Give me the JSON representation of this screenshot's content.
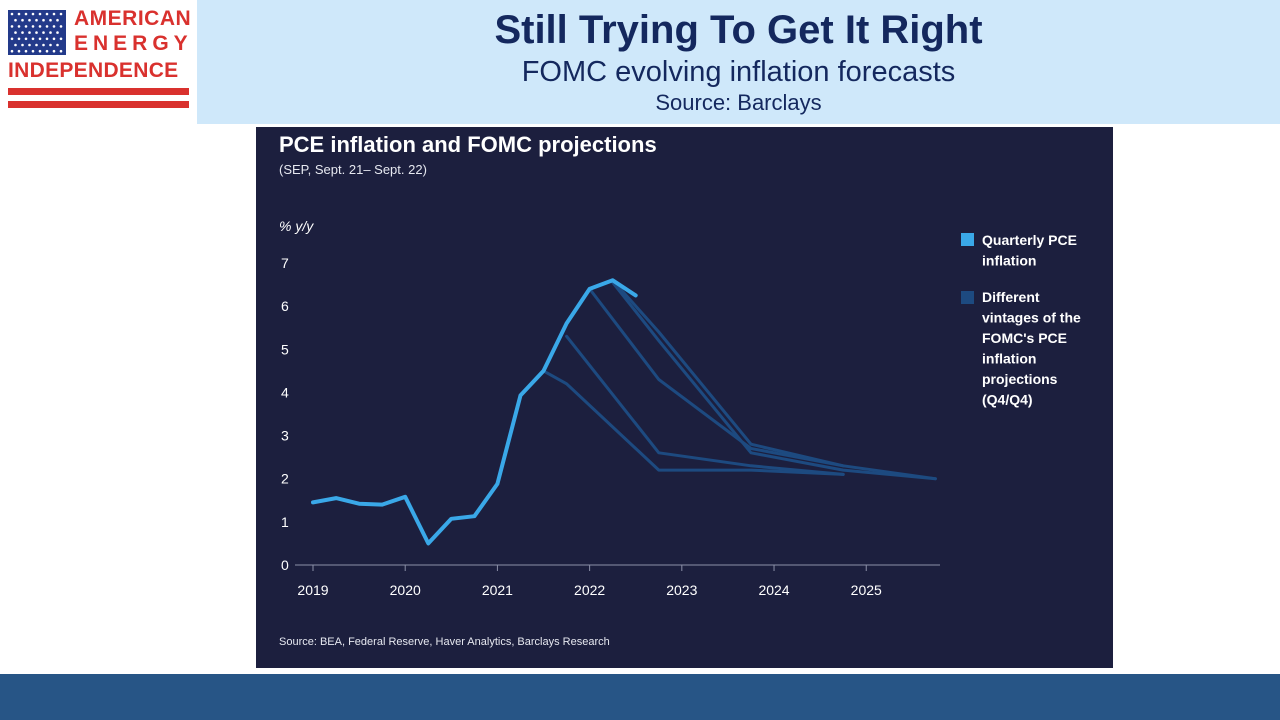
{
  "header": {
    "title": "Still Trying To Get It Right",
    "subtitle": "FOMC evolving inflation forecasts",
    "source": "Source: Barclays"
  },
  "logo": {
    "line1": "AMERICAN",
    "line2": "ENERGY",
    "line3": "INDEPENDENCE",
    "colors": {
      "red": "#d9312e",
      "blue": "#233a8a"
    }
  },
  "colors": {
    "header_band": "#cfe8fa",
    "title_text": "#14285e",
    "panel": "#1c1f3e",
    "actual_line": "#3aa8e8",
    "projection_line": "#1d4a80",
    "footer": "#275586"
  },
  "chart_data": {
    "type": "line",
    "title": "PCE inflation and FOMC projections",
    "subtitle": "(SEP, Sept. 21– Sept. 22)",
    "ylabel": "% y/y",
    "xlabel": "",
    "ylim": [
      0,
      7
    ],
    "xlim": [
      2019,
      2025.8
    ],
    "y_ticks": [
      0,
      1,
      2,
      3,
      4,
      5,
      6,
      7
    ],
    "x_ticks": [
      2019,
      2020,
      2021,
      2022,
      2023,
      2024,
      2025
    ],
    "grid": false,
    "legend_position": "right",
    "source_note": "Source: BEA, Federal Reserve, Haver Analytics, Barclays Research",
    "series": [
      {
        "name": "Quarterly PCE inflation",
        "legend": "Quarterly PCE inflation",
        "color": "#3aa8e8",
        "points": [
          [
            2019.0,
            1.45
          ],
          [
            2019.25,
            1.55
          ],
          [
            2019.5,
            1.42
          ],
          [
            2019.75,
            1.4
          ],
          [
            2020.0,
            1.58
          ],
          [
            2020.25,
            0.5
          ],
          [
            2020.5,
            1.07
          ],
          [
            2020.75,
            1.13
          ],
          [
            2021.0,
            1.88
          ],
          [
            2021.25,
            3.93
          ],
          [
            2021.5,
            4.5
          ],
          [
            2021.75,
            5.6
          ],
          [
            2022.0,
            6.4
          ],
          [
            2022.25,
            6.6
          ],
          [
            2022.5,
            6.25
          ]
        ]
      },
      {
        "name": "Different vintages of the FOMC's PCE inflation projections (Q4/Q4)",
        "legend": "Different vintages of the FOMC's PCE inflation projections (Q4/Q4)",
        "color": "#1d4a80",
        "vintages": [
          [
            [
              2021.5,
              4.5
            ],
            [
              2021.75,
              4.2
            ],
            [
              2022.75,
              2.2
            ],
            [
              2023.75,
              2.2
            ],
            [
              2024.75,
              2.1
            ]
          ],
          [
            [
              2021.75,
              5.3
            ],
            [
              2022.75,
              2.6
            ],
            [
              2023.75,
              2.3
            ],
            [
              2024.75,
              2.1
            ]
          ],
          [
            [
              2022.0,
              6.4
            ],
            [
              2022.75,
              4.3
            ],
            [
              2023.75,
              2.7
            ],
            [
              2024.75,
              2.3
            ]
          ],
          [
            [
              2022.25,
              6.6
            ],
            [
              2022.75,
              5.4
            ],
            [
              2023.75,
              2.8
            ],
            [
              2024.75,
              2.3
            ],
            [
              2025.75,
              2.0
            ]
          ],
          [
            [
              2022.25,
              6.55
            ],
            [
              2022.75,
              5.2
            ],
            [
              2023.75,
              2.6
            ],
            [
              2024.75,
              2.2
            ],
            [
              2025.75,
              2.0
            ]
          ]
        ]
      }
    ]
  }
}
